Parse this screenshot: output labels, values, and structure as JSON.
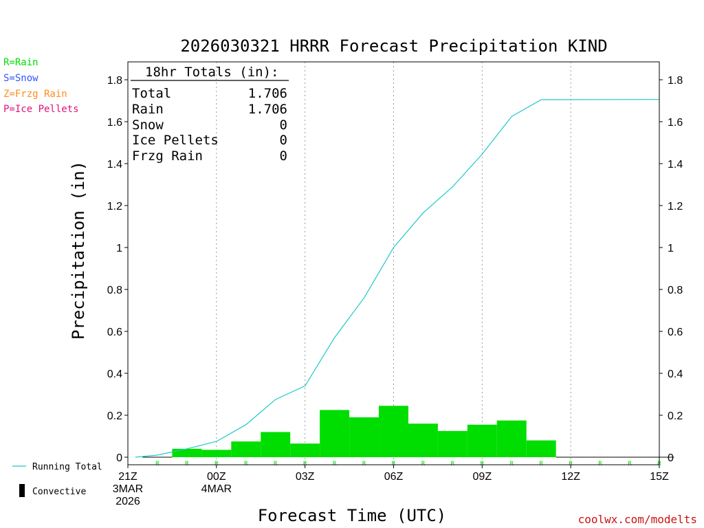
{
  "chart_data": {
    "type": "bar",
    "title": "2026030321 HRRR Forecast Precipitation KIND",
    "xlabel": "Forecast Time (UTC)",
    "ylabel": "Precipitation (in)",
    "ylim": [
      0,
      1.85
    ],
    "y_ticks": [
      0,
      0.2,
      0.4,
      0.6,
      0.8,
      1,
      1.2,
      1.4,
      1.6,
      1.8
    ],
    "y_tick_labels": [
      "0",
      "0.2",
      "0.4",
      "0.6",
      "0.8",
      "1",
      "1.2",
      "1.4",
      "1.6",
      "1.8"
    ],
    "x_range_hours": [
      0,
      18
    ],
    "x_ticks": [
      {
        "hour": 0,
        "lines": [
          "21Z",
          "3MAR",
          "2026"
        ]
      },
      {
        "hour": 3,
        "lines": [
          "00Z",
          "4MAR"
        ]
      },
      {
        "hour": 6,
        "lines": [
          "03Z"
        ]
      },
      {
        "hour": 9,
        "lines": [
          "06Z"
        ]
      },
      {
        "hour": 12,
        "lines": [
          "09Z"
        ]
      },
      {
        "hour": 15,
        "lines": [
          "12Z"
        ]
      },
      {
        "hour": 18,
        "lines": [
          "15Z"
        ]
      }
    ],
    "hours": [
      1,
      2,
      3,
      4,
      5,
      6,
      7,
      8,
      9,
      10,
      11,
      12,
      13,
      14,
      15,
      16,
      17,
      18
    ],
    "hourly_precip": [
      0.0,
      0.04,
      0.035,
      0.075,
      0.12,
      0.065,
      0.225,
      0.19,
      0.245,
      0.16,
      0.125,
      0.155,
      0.175,
      0.08,
      0.0,
      0.0,
      0.0,
      0.0
    ],
    "precip_type": [
      "R",
      "R",
      "R",
      "R",
      "R",
      "R",
      "R",
      "R",
      "R",
      "R",
      "R",
      "R",
      "R",
      "R",
      "R",
      "R",
      "R",
      "R"
    ],
    "running_total": [
      {
        "hour": 0.25,
        "value": 0.0
      },
      {
        "hour": 1,
        "value": 0.01
      },
      {
        "hour": 2,
        "value": 0.04
      },
      {
        "hour": 3,
        "value": 0.075
      },
      {
        "hour": 4,
        "value": 0.155
      },
      {
        "hour": 5,
        "value": 0.275
      },
      {
        "hour": 6,
        "value": 0.34
      },
      {
        "hour": 7,
        "value": 0.57
      },
      {
        "hour": 8,
        "value": 0.76
      },
      {
        "hour": 9,
        "value": 1.0
      },
      {
        "hour": 10,
        "value": 1.165
      },
      {
        "hour": 11,
        "value": 1.29
      },
      {
        "hour": 12,
        "value": 1.445
      },
      {
        "hour": 13,
        "value": 1.625
      },
      {
        "hour": 14,
        "value": 1.705
      },
      {
        "hour": 18,
        "value": 1.706
      }
    ],
    "colors": {
      "rain": "#00dd00",
      "snow": "#3355ff",
      "frzg_rain": "#ff8c1a",
      "ice_pellets": "#e0107a",
      "running_total": "#1fc8c8",
      "grid": "#999999"
    }
  },
  "totals": {
    "header": "18hr Totals (in):",
    "rows": [
      {
        "label": "Total",
        "value": "1.706"
      },
      {
        "label": "Rain",
        "value": "1.706"
      },
      {
        "label": "Snow",
        "value": "0"
      },
      {
        "label": "Ice Pellets",
        "value": "0"
      },
      {
        "label": "Frzg Rain",
        "value": "0"
      }
    ]
  },
  "type_legend": [
    {
      "label": "R=Rain",
      "color": "#00dd00"
    },
    {
      "label": "S=Snow",
      "color": "#3355ff"
    },
    {
      "label": "Z=Frzg Rain",
      "color": "#ff8c1a"
    },
    {
      "label": "P=Ice Pellets",
      "color": "#e0107a"
    }
  ],
  "series_legend": {
    "running_total": "Running Total",
    "convective": "Convective"
  },
  "credit": "coolwx.com/modelts"
}
